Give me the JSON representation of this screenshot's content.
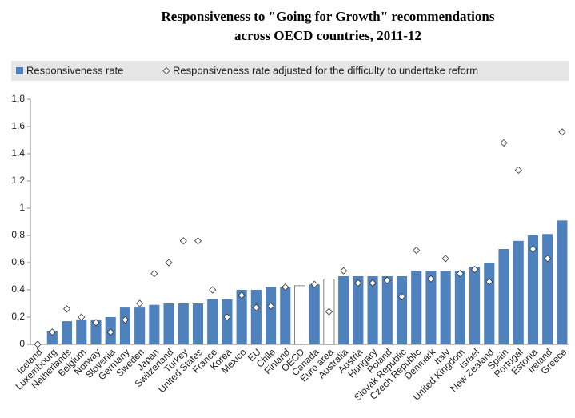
{
  "chart_data": {
    "type": "bar",
    "title": [
      "Responsiveness to \"Going for Growth\" recommendations",
      "across OECD countries, 2011-12"
    ],
    "categories": [
      "Iceland",
      "Luxembourg",
      "Netherlands",
      "Belgium",
      "Norway",
      "Slovenia",
      "Germany",
      "Sweden",
      "Japan",
      "Switzerland",
      "Turkey",
      "United States",
      "France",
      "Korea",
      "Mexico",
      "EU",
      "Chile",
      "Finland",
      "OECD",
      "Canada",
      "Euro area",
      "Australia",
      "Austria",
      "Hungary",
      "Poland",
      "Slovak Republic",
      "Czech Republic",
      "Denmark",
      "Italy",
      "United Kingdom",
      "Israel",
      "New Zealand",
      "Spain",
      "Portugal",
      "Estonia",
      "Ireland",
      "Greece"
    ],
    "series": [
      {
        "name": "Responsiveness rate",
        "color": "#4f81bd",
        "bar_colors": [
          "#4f81bd",
          "#4f81bd",
          "#4f81bd",
          "#4f81bd",
          "#4f81bd",
          "#4f81bd",
          "#4f81bd",
          "#4f81bd",
          "#4f81bd",
          "#4f81bd",
          "#4f81bd",
          "#4f81bd",
          "#4f81bd",
          "#4f81bd",
          "#4f81bd",
          "#4f81bd",
          "#4f81bd",
          "#4f81bd",
          "#ffffff",
          "#4f81bd",
          "#ffffff",
          "#4f81bd",
          "#4f81bd",
          "#4f81bd",
          "#4f81bd",
          "#4f81bd",
          "#4f81bd",
          "#4f81bd",
          "#4f81bd",
          "#4f81bd",
          "#4f81bd",
          "#4f81bd",
          "#4f81bd",
          "#4f81bd",
          "#4f81bd",
          "#4f81bd",
          "#4f81bd"
        ],
        "values": [
          0,
          0.1,
          0.17,
          0.18,
          0.18,
          0.2,
          0.27,
          0.27,
          0.29,
          0.3,
          0.3,
          0.3,
          0.33,
          0.33,
          0.4,
          0.4,
          0.42,
          0.42,
          0.43,
          0.44,
          0.48,
          0.5,
          0.5,
          0.5,
          0.5,
          0.5,
          0.54,
          0.54,
          0.54,
          0.54,
          0.57,
          0.6,
          0.7,
          0.76,
          0.8,
          0.81,
          0.91
        ]
      },
      {
        "name": "Responsiveness rate adjusted for the difficulty to undertake reform",
        "color": "#ffffff",
        "marker": "diamond",
        "values": [
          0,
          0.09,
          0.26,
          0.2,
          0.16,
          0.09,
          0.18,
          0.3,
          0.52,
          0.6,
          0.76,
          0.76,
          0.4,
          0.2,
          0.36,
          0.27,
          0.28,
          0.42,
          null,
          0.44,
          0.24,
          0.54,
          0.45,
          0.45,
          0.47,
          0.35,
          0.69,
          0.48,
          0.63,
          0.52,
          0.55,
          0.46,
          1.48,
          1.28,
          0.7,
          0.63,
          1.56
        ]
      }
    ],
    "ylim": [
      0,
      1.8
    ],
    "yticks": [
      0,
      {
        "value": 0.2,
        "label": "0,2"
      },
      {
        "value": 0.4,
        "label": "0,4"
      },
      {
        "value": 0.6,
        "label": "0,6"
      },
      {
        "value": 0.8,
        "label": "0,8"
      },
      1,
      {
        "value": 1.2,
        "label": "1,2"
      },
      {
        "value": 1.4,
        "label": "1,4"
      },
      {
        "value": 1.6,
        "label": "1,6"
      },
      {
        "value": 1.8,
        "label": "1,8"
      }
    ],
    "grid": false,
    "legend": "top"
  }
}
